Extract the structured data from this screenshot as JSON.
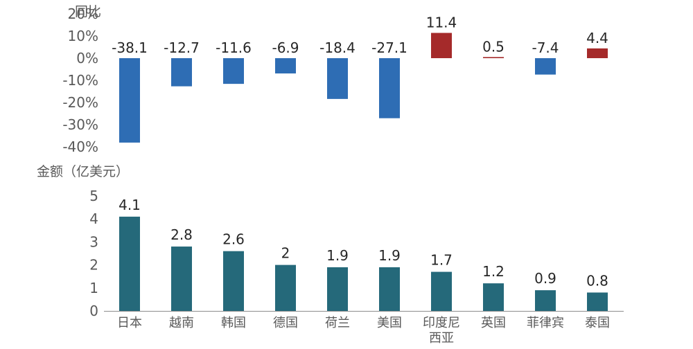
{
  "chart_data": [
    {
      "type": "bar",
      "ylabel": "同比",
      "ylim": [
        -40,
        20
      ],
      "tick_labels": [
        "20%",
        "10%",
        "0%",
        "-10%",
        "-20%",
        "-30%",
        "-40%"
      ],
      "tick_values": [
        20,
        10,
        0,
        -10,
        -20,
        -30,
        -40
      ],
      "categories": [
        "日本",
        "越南",
        "韩国",
        "德国",
        "荷兰",
        "美国",
        "印度尼西亚",
        "英国",
        "菲律宾",
        "泰国"
      ],
      "values": [
        -38.1,
        -12.7,
        -11.6,
        -6.9,
        -18.4,
        -27.1,
        11.4,
        0.5,
        -7.4,
        4.4
      ],
      "value_labels": [
        "-38.1",
        "-12.7",
        "-11.6",
        "-6.9",
        "-18.4",
        "-27.1",
        "11.4",
        "0.5",
        "-7.4",
        "4.4"
      ],
      "grid": false,
      "colors": {
        "negative": "#2E6DB4",
        "positive": "#A52A2A"
      }
    },
    {
      "type": "bar",
      "ylabel": "金额（亿美元）",
      "ylim": [
        0,
        5
      ],
      "tick_labels": [
        "5",
        "4",
        "3",
        "2",
        "1",
        "0"
      ],
      "tick_values": [
        5,
        4,
        3,
        2,
        1,
        0
      ],
      "categories": [
        "日本",
        "越南",
        "韩国",
        "德国",
        "荷兰",
        "美国",
        "印度尼西亚",
        "英国",
        "菲律宾",
        "泰国"
      ],
      "category_lines": [
        [
          "日本"
        ],
        [
          "越南"
        ],
        [
          "韩国"
        ],
        [
          "德国"
        ],
        [
          "荷兰"
        ],
        [
          "美国"
        ],
        [
          "印度尼",
          "西亚"
        ],
        [
          "英国"
        ],
        [
          "菲律宾"
        ],
        [
          "泰国"
        ]
      ],
      "values": [
        4.1,
        2.8,
        2.6,
        2,
        1.9,
        1.9,
        1.7,
        1.2,
        0.9,
        0.8
      ],
      "value_labels": [
        "4.1",
        "2.8",
        "2.6",
        "2",
        "1.9",
        "1.9",
        "1.7",
        "1.2",
        "0.9",
        "0.8"
      ],
      "grid": false,
      "colors": {
        "bar": "#25697A",
        "axis": "#8C8C8C"
      }
    }
  ]
}
